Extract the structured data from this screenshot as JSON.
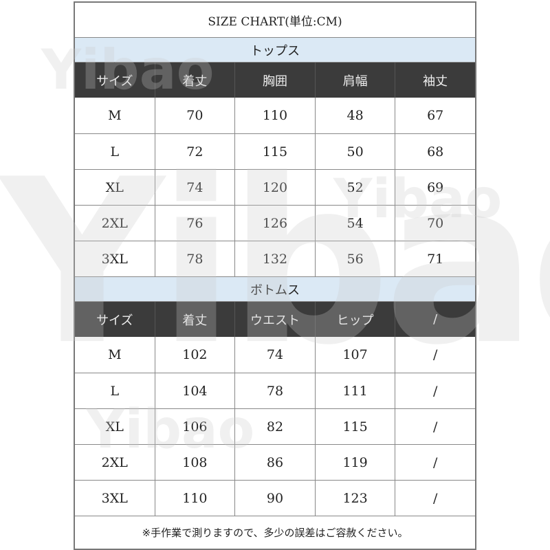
{
  "title": "SIZE CHART(単位:CM)",
  "watermark": "Yibao",
  "tops": {
    "section_label": "トップス",
    "headers": [
      "サイズ",
      "着丈",
      "胸囲",
      "肩幅",
      "袖丈"
    ],
    "rows": [
      [
        "M",
        "70",
        "110",
        "48",
        "67"
      ],
      [
        "L",
        "72",
        "115",
        "50",
        "68"
      ],
      [
        "XL",
        "74",
        "120",
        "52",
        "69"
      ],
      [
        "2XL",
        "76",
        "126",
        "54",
        "70"
      ],
      [
        "3XL",
        "78",
        "132",
        "56",
        "71"
      ]
    ]
  },
  "bottoms": {
    "section_label": "ボトムス",
    "headers": [
      "サイズ",
      "着丈",
      "ウエスト",
      "ヒップ",
      "/"
    ],
    "rows": [
      [
        "M",
        "102",
        "74",
        "107",
        "/"
      ],
      [
        "L",
        "104",
        "78",
        "111",
        "/"
      ],
      [
        "XL",
        "106",
        "82",
        "115",
        "/"
      ],
      [
        "2XL",
        "108",
        "86",
        "119",
        "/"
      ],
      [
        "3XL",
        "110",
        "90",
        "123",
        "/"
      ]
    ]
  },
  "note": "※手作業で測りますので、多少の誤差はご容赦ください。",
  "colors": {
    "section_bg": "#dbe9f5",
    "header_bg": "#3b3b3b",
    "border": "#777777"
  }
}
